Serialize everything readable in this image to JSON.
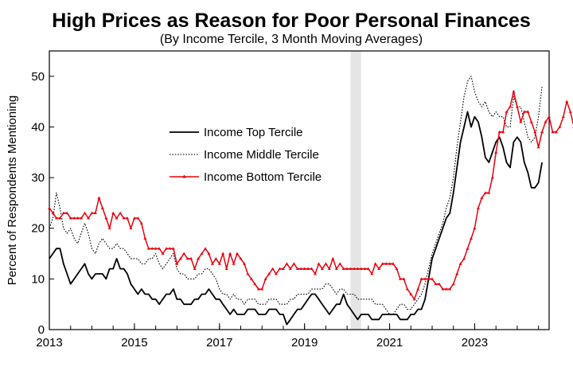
{
  "chart_data": {
    "type": "line",
    "title": "High Prices as Reason for Poor Personal Finances",
    "subtitle": "(By Income Tercile, 3 Month Moving Averages)",
    "xlabel": "",
    "ylabel": "Percent of Respondents Mentioning",
    "x_start": 2013.0,
    "x_step": 0.08333,
    "xlim": [
      2013,
      2024.75
    ],
    "ylim": [
      0,
      55
    ],
    "x_ticks": [
      "2013",
      "2015",
      "2017",
      "2019",
      "2021",
      "2023"
    ],
    "y_ticks": [
      "0",
      "10",
      "20",
      "30",
      "40",
      "50"
    ],
    "recession_band": [
      2020.08,
      2020.33
    ],
    "grid": false,
    "legend_position": "center-left",
    "series": [
      {
        "name": "Income Top Tercile",
        "color": "#000000",
        "style": "solid",
        "values": [
          14,
          15,
          16,
          16,
          13,
          11,
          9,
          10,
          11,
          12,
          13,
          11,
          10,
          11,
          11,
          11,
          10,
          12,
          12,
          14,
          12,
          12,
          11,
          9,
          8,
          7,
          8,
          7,
          7,
          6,
          6,
          5,
          6,
          7,
          7,
          8,
          6,
          6,
          5,
          5,
          5,
          6,
          6,
          7,
          7,
          8,
          7,
          6,
          6,
          5,
          4,
          3,
          4,
          3,
          3,
          3,
          4,
          4,
          4,
          3,
          3,
          3,
          4,
          4,
          4,
          3,
          3,
          1,
          2,
          3,
          4,
          4,
          5,
          6,
          7,
          7,
          6,
          5,
          4,
          3,
          4,
          5,
          5,
          7,
          5,
          4,
          3,
          2,
          3,
          3,
          3,
          2,
          2,
          2,
          3,
          3,
          3,
          3,
          3,
          2,
          2,
          2,
          3,
          3,
          4,
          4,
          6,
          10,
          14,
          16,
          18,
          20,
          22,
          23,
          27,
          32,
          37,
          40,
          43,
          40,
          42,
          41,
          38,
          34,
          33,
          35,
          37,
          38,
          36,
          33,
          32,
          37,
          38,
          37,
          33,
          31,
          28,
          28,
          29,
          33
        ]
      },
      {
        "name": "Income Middle Tercile",
        "color": "#000000",
        "style": "dotted",
        "values": [
          20,
          22,
          27,
          24,
          20,
          19,
          20,
          18,
          17,
          19,
          21,
          19,
          16,
          15,
          17,
          18,
          17,
          16,
          16,
          17,
          16,
          16,
          15,
          14,
          14,
          14,
          13,
          13,
          14,
          14,
          15,
          13,
          12,
          13,
          14,
          15,
          12,
          11,
          11,
          10,
          10,
          10,
          11,
          11,
          12,
          12,
          11,
          10,
          8,
          7,
          7,
          6,
          7,
          6,
          6,
          5,
          6,
          6,
          6,
          5,
          5,
          5,
          6,
          6,
          6,
          5,
          5,
          5,
          6,
          6,
          7,
          7,
          7,
          7,
          8,
          8,
          8,
          8,
          9,
          9,
          8,
          7,
          8,
          8,
          7,
          7,
          7,
          6,
          6,
          6,
          6,
          6,
          5,
          5,
          5,
          4,
          3,
          3,
          4,
          5,
          5,
          4,
          4,
          5,
          6,
          7,
          9,
          12,
          15,
          17,
          19,
          21,
          24,
          26,
          30,
          36,
          41,
          46,
          49,
          50,
          47,
          45,
          44,
          45,
          43,
          42,
          43,
          42,
          42,
          40,
          40,
          46,
          44,
          44,
          41,
          38,
          37,
          38,
          42,
          48
        ]
      },
      {
        "name": "Income Bottom Tercile",
        "color": "#e8000b",
        "style": "solid",
        "values": [
          24,
          23,
          22,
          22,
          23,
          23,
          22,
          22,
          22,
          22,
          23,
          22,
          23,
          23,
          26,
          24,
          22,
          20,
          23,
          22,
          23,
          22,
          22,
          20,
          22,
          22,
          21,
          18,
          16,
          16,
          16,
          16,
          15,
          16,
          16,
          16,
          13,
          14,
          15,
          14,
          14,
          12,
          14,
          15,
          16,
          15,
          13,
          14,
          13,
          15,
          12,
          15,
          13,
          15,
          14,
          13,
          11,
          10,
          9,
          8,
          8,
          10,
          11,
          12,
          11,
          12,
          12,
          13,
          12,
          13,
          12,
          12,
          12,
          12,
          12,
          11,
          13,
          12,
          13,
          12,
          14,
          12,
          13,
          12,
          12,
          12,
          12,
          12,
          12,
          12,
          12,
          11,
          13,
          12,
          13,
          13,
          13,
          13,
          12,
          10,
          10,
          8,
          7,
          6,
          8,
          10,
          10,
          10,
          10,
          9,
          9,
          8,
          8,
          8,
          9,
          11,
          13,
          14,
          16,
          18,
          20,
          24,
          26,
          27,
          27,
          30,
          35,
          39,
          39,
          43,
          44,
          47,
          44,
          41,
          43,
          43,
          41,
          39,
          36,
          39,
          41,
          42,
          39,
          39,
          40,
          42,
          45,
          43,
          40,
          38,
          38,
          38,
          40,
          45
        ]
      }
    ]
  }
}
